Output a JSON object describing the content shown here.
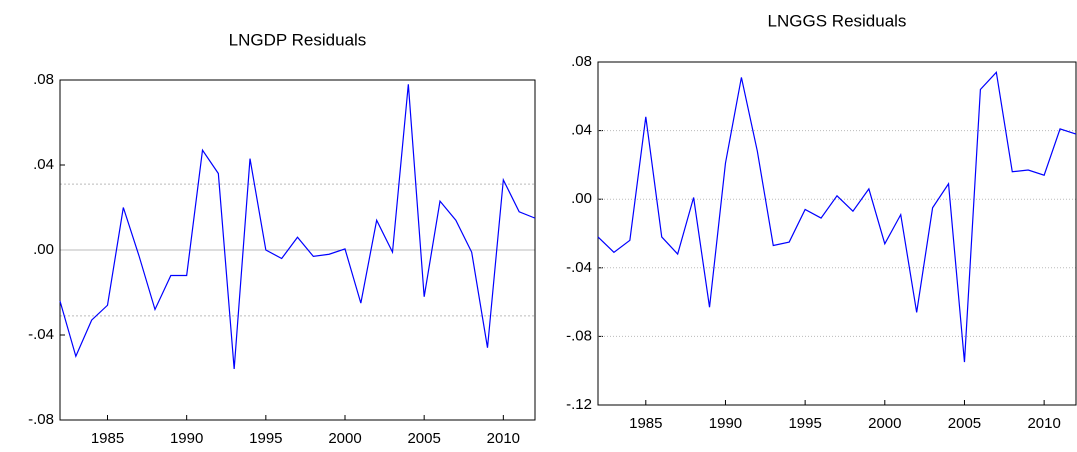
{
  "chart_data": [
    {
      "type": "line",
      "title": "LNGDP Residuals",
      "x": [
        1982,
        1983,
        1984,
        1985,
        1986,
        1987,
        1988,
        1989,
        1990,
        1991,
        1992,
        1993,
        1994,
        1995,
        1996,
        1997,
        1998,
        1999,
        2000,
        2001,
        2002,
        2003,
        2004,
        2005,
        2006,
        2007,
        2008,
        2009,
        2010,
        2011,
        2012
      ],
      "series": [
        {
          "name": "LNGDP",
          "color": "#0000ff",
          "values": [
            -0.024,
            -0.05,
            -0.033,
            -0.026,
            0.02,
            -0.003,
            -0.028,
            -0.012,
            -0.012,
            0.047,
            0.036,
            -0.056,
            0.043,
            0.0,
            -0.004,
            0.006,
            -0.003,
            -0.002,
            0.0005,
            -0.025,
            0.014,
            -0.001,
            0.078,
            -0.022,
            0.023,
            0.014,
            -0.001,
            -0.046,
            0.033,
            0.018,
            0.015
          ]
        }
      ],
      "xlim": [
        1982,
        2012
      ],
      "xticks": [
        1985,
        1990,
        1995,
        2000,
        2005,
        2010
      ],
      "ylim": [
        -0.08,
        0.08
      ],
      "yticks": [
        {
          "value": -0.08,
          "label": "-.08"
        },
        {
          "value": -0.04,
          "label": "-.04"
        },
        {
          "value": 0,
          "label": ".00"
        },
        {
          "value": 0.04,
          "label": ".04"
        },
        {
          "value": 0.08,
          "label": ".08"
        }
      ],
      "grid": false,
      "zero_line": true,
      "reference_lines": [
        -0.031,
        0.031
      ]
    },
    {
      "type": "line",
      "title": "LNGGS Residuals",
      "x": [
        1982,
        1983,
        1984,
        1985,
        1986,
        1987,
        1988,
        1989,
        1990,
        1991,
        1992,
        1993,
        1994,
        1995,
        1996,
        1997,
        1998,
        1999,
        2000,
        2001,
        2002,
        2003,
        2004,
        2005,
        2006,
        2007,
        2008,
        2009,
        2010,
        2011,
        2012
      ],
      "series": [
        {
          "name": "LNGGS",
          "color": "#0000ff",
          "values": [
            -0.022,
            -0.031,
            -0.024,
            0.048,
            -0.022,
            -0.032,
            0.001,
            -0.063,
            0.021,
            0.071,
            0.028,
            -0.027,
            -0.025,
            -0.006,
            -0.011,
            0.002,
            -0.007,
            0.006,
            -0.026,
            -0.009,
            -0.066,
            -0.005,
            0.009,
            -0.095,
            0.064,
            0.074,
            0.016,
            0.017,
            0.014,
            0.041,
            0.038
          ]
        }
      ],
      "xlim": [
        1982,
        2012
      ],
      "xticks": [
        1985,
        1990,
        1995,
        2000,
        2005,
        2010
      ],
      "ylim": [
        -0.12,
        0.08
      ],
      "yticks": [
        {
          "value": -0.12,
          "label": "-.12"
        },
        {
          "value": -0.08,
          "label": "-.08"
        },
        {
          "value": -0.04,
          "label": "-.04"
        },
        {
          "value": 0,
          "label": ".00"
        },
        {
          "value": 0.04,
          "label": ".04"
        },
        {
          "value": 0.08,
          "label": ".08"
        }
      ],
      "grid": true
    }
  ]
}
